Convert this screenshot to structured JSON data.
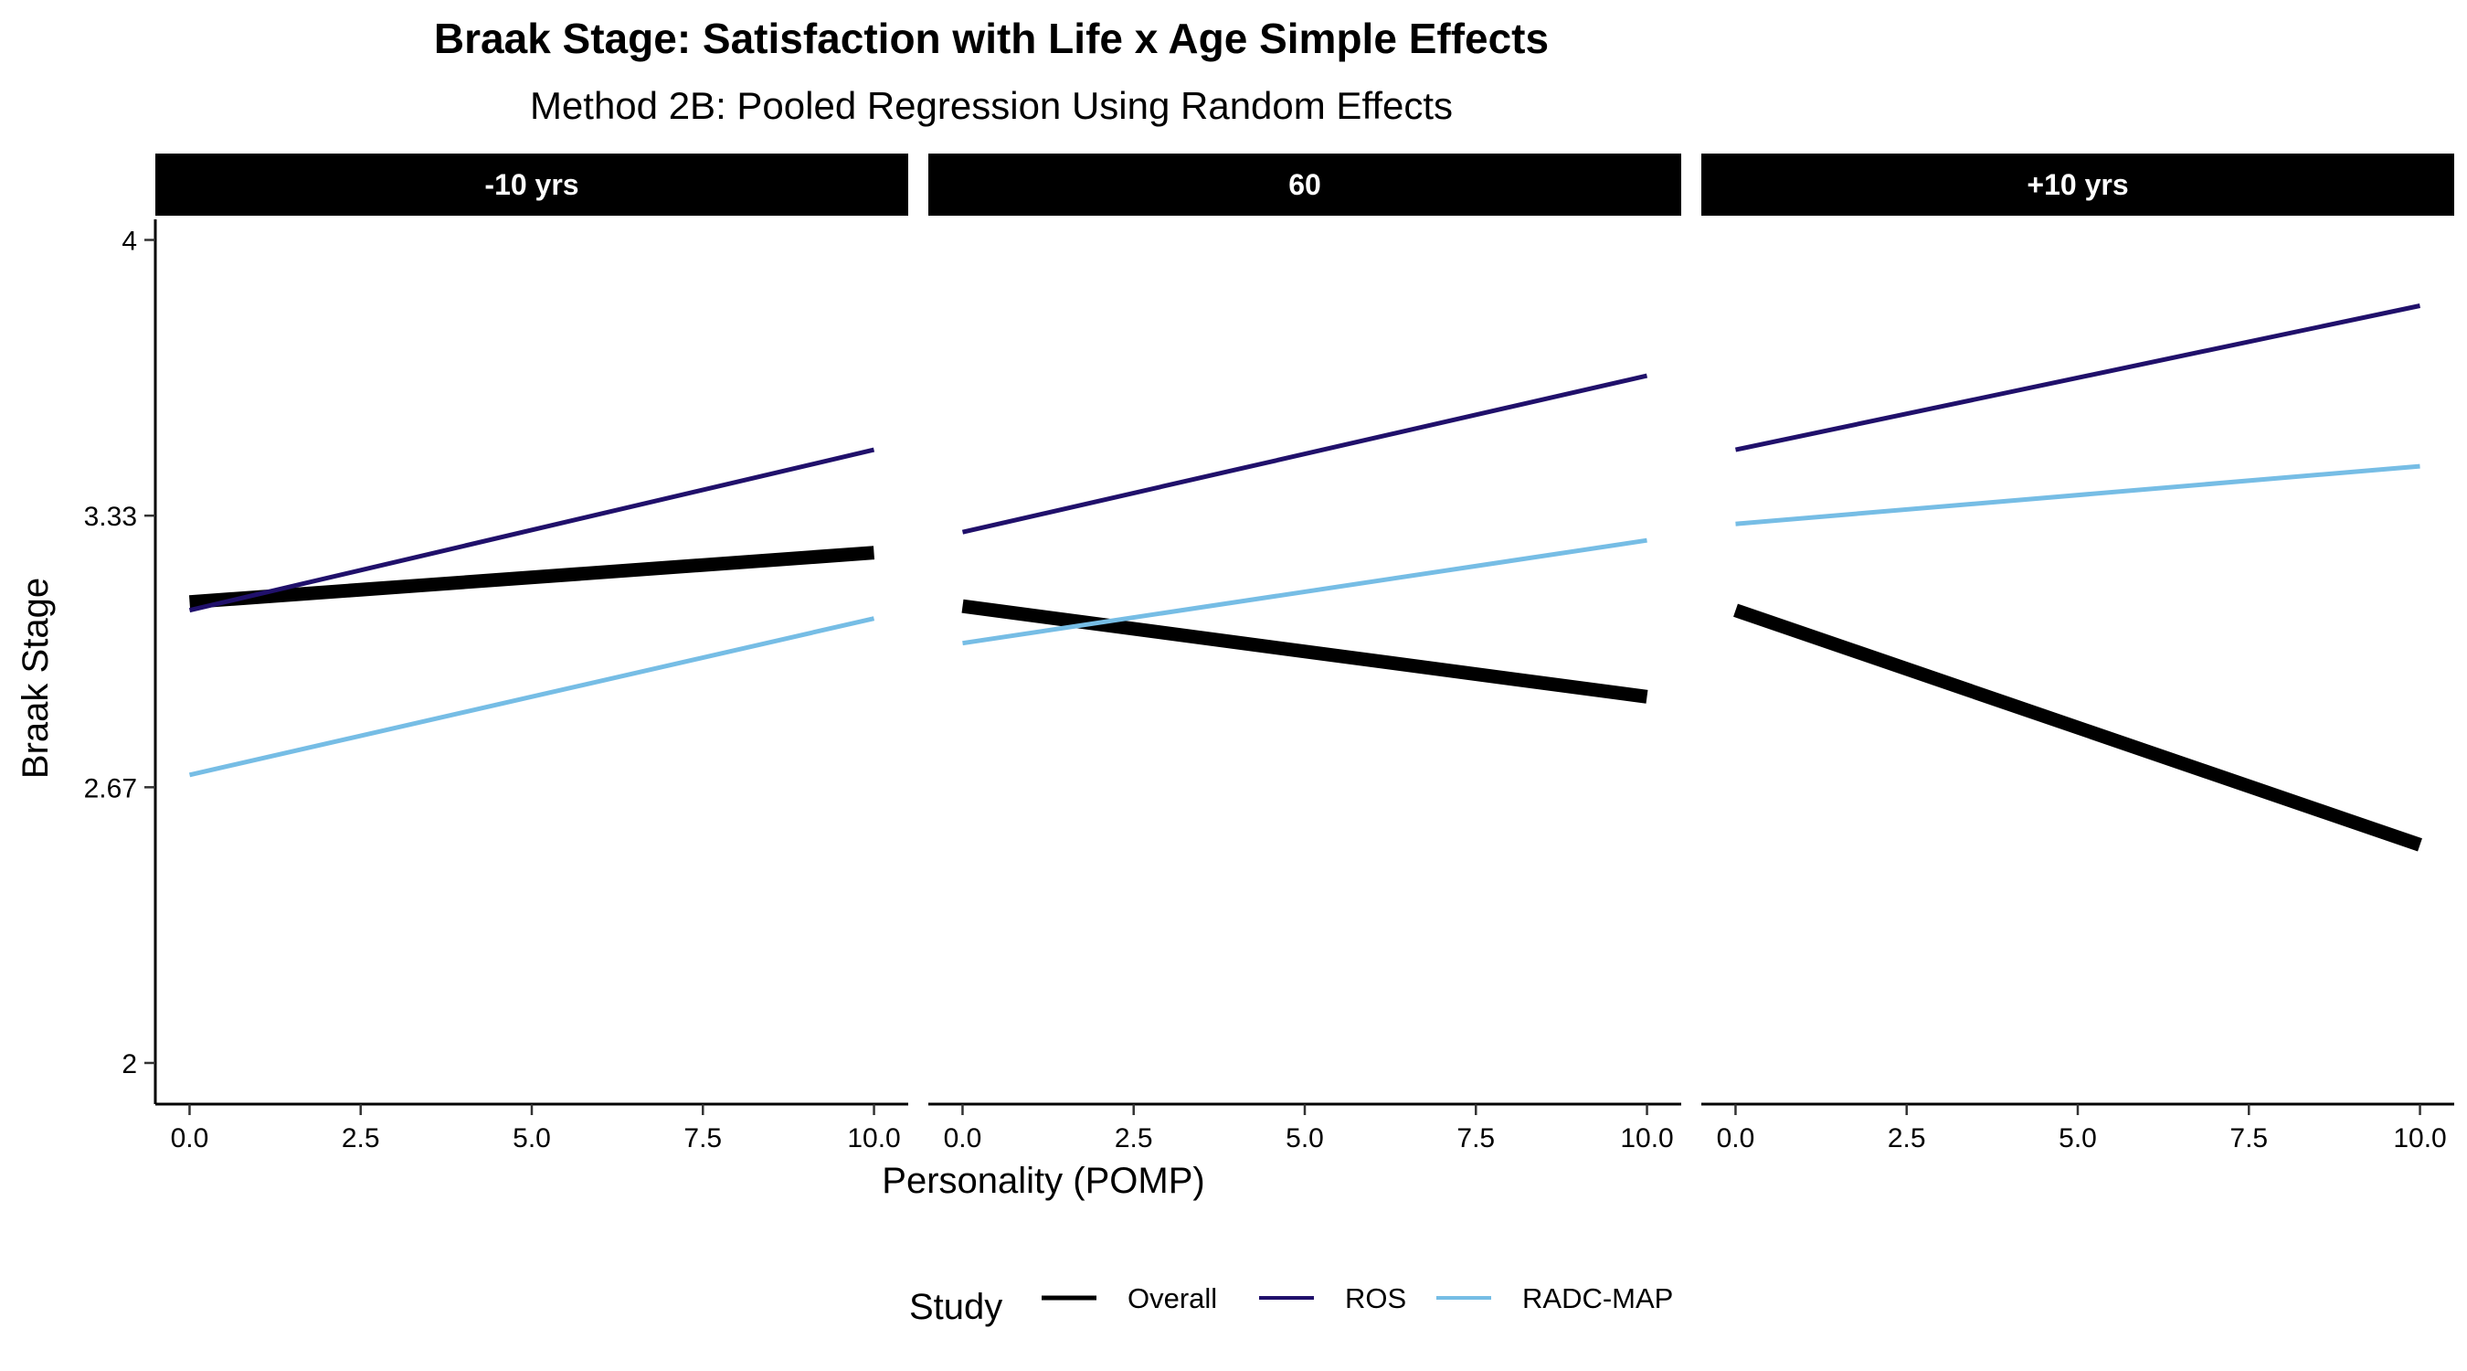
{
  "chart_data": {
    "type": "line",
    "title": "Braak Stage: Satisfaction with Life x Age Simple Effects",
    "subtitle": "Method 2B: Pooled Regression Using Random Effects",
    "xlabel": "Personality (POMP)",
    "ylabel": "Braak Stage",
    "xlim": [
      -0.5,
      10.5
    ],
    "ylim": [
      1.9,
      4.05
    ],
    "x_ticks": [
      0,
      2.5,
      5,
      7.5,
      10
    ],
    "x_tick_labels": [
      "0.0",
      "2.5",
      "5.0",
      "7.5",
      "10.0"
    ],
    "y_ticks": [
      2,
      2.67,
      3.33,
      4
    ],
    "y_tick_labels": [
      "2",
      "2.67",
      "3.33",
      "4"
    ],
    "grid": false,
    "legend": {
      "title": "Study",
      "position": "bottom",
      "entries": [
        {
          "label": "Overall",
          "color": "#000000"
        },
        {
          "label": "ROS",
          "color": "#20106b"
        },
        {
          "label": "RADC-MAP",
          "color": "#76bde5"
        }
      ]
    },
    "panels": [
      {
        "label": "-10 yrs",
        "series": [
          {
            "name": "Overall",
            "color": "#000000",
            "x": [
              0,
              10
            ],
            "y": [
              3.12,
              3.24
            ]
          },
          {
            "name": "ROS",
            "color": "#20106b",
            "x": [
              0,
              10
            ],
            "y": [
              3.1,
              3.49
            ]
          },
          {
            "name": "RADC-MAP",
            "color": "#76bde5",
            "x": [
              0,
              10
            ],
            "y": [
              2.7,
              3.08
            ]
          }
        ]
      },
      {
        "label": "60",
        "series": [
          {
            "name": "Overall",
            "color": "#000000",
            "x": [
              0,
              10
            ],
            "y": [
              3.11,
              2.89
            ]
          },
          {
            "name": "ROS",
            "color": "#20106b",
            "x": [
              0,
              10
            ],
            "y": [
              3.29,
              3.67
            ]
          },
          {
            "name": "RADC-MAP",
            "color": "#76bde5",
            "x": [
              0,
              10
            ],
            "y": [
              3.02,
              3.27
            ]
          }
        ]
      },
      {
        "label": "+10 yrs",
        "series": [
          {
            "name": "Overall",
            "color": "#000000",
            "x": [
              0,
              10
            ],
            "y": [
              3.1,
              2.53
            ]
          },
          {
            "name": "ROS",
            "color": "#20106b",
            "x": [
              0,
              10
            ],
            "y": [
              3.49,
              3.84
            ]
          },
          {
            "name": "RADC-MAP",
            "color": "#76bde5",
            "x": [
              0,
              10
            ],
            "y": [
              3.31,
              3.45
            ]
          }
        ]
      }
    ]
  }
}
